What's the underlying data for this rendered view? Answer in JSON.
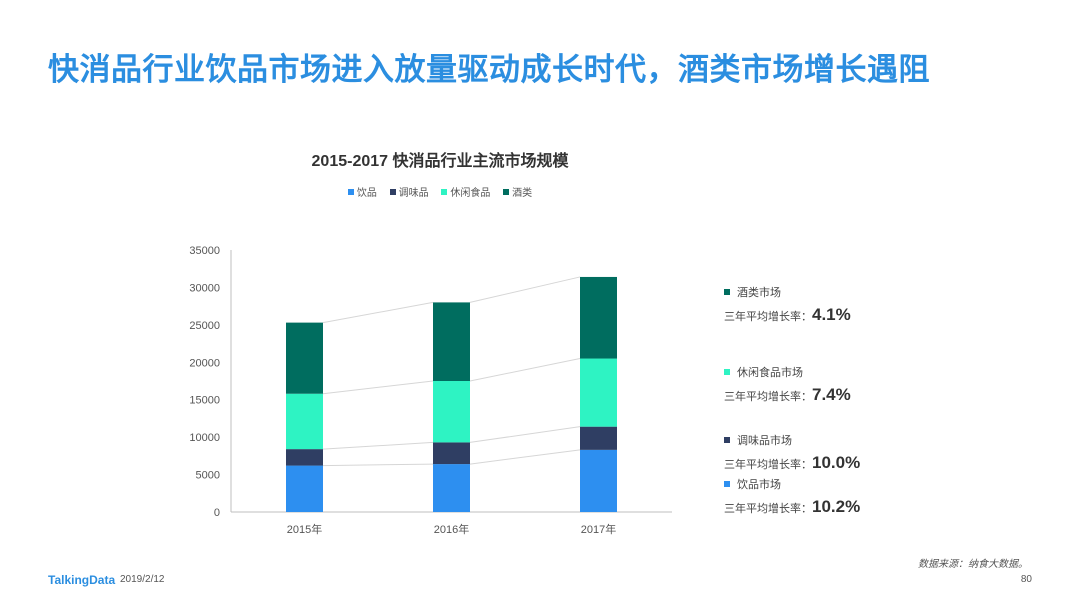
{
  "slide_title": "快消品行业饮品市场进入放量驱动成长时代，酒类市场增长遇阻",
  "colors": {
    "title": "#2b8ee0",
    "饮品": "#2d8ff0",
    "调味品": "#2f3e63",
    "休闲食品": "#2ef3c3",
    "酒类": "#006d5f"
  },
  "chart_data": {
    "type": "bar",
    "stacked": true,
    "title": "2015-2017  快消品行业主流市场规模",
    "categories": [
      "2015年",
      "2016年",
      "2017年"
    ],
    "series": [
      {
        "name": "饮品",
        "values": [
          6200,
          6400,
          8300
        ]
      },
      {
        "name": "调味品",
        "values": [
          2200,
          2900,
          3100
        ]
      },
      {
        "name": "休闲食品",
        "values": [
          7400,
          8200,
          9100
        ]
      },
      {
        "name": "酒类",
        "values": [
          9500,
          10500,
          10900
        ]
      }
    ],
    "ylim": [
      0,
      35000
    ],
    "yticks": [
      "0",
      "5000",
      "10000",
      "15000",
      "20000",
      "25000",
      "30000",
      "35000"
    ],
    "legend_position": "top-center",
    "grid": false,
    "connector_lines": true
  },
  "annotations": [
    {
      "name": "酒类市场",
      "rate_label": "三年平均增长率：",
      "rate": "4.1%",
      "color": "#006d5f"
    },
    {
      "name": "休闲食品市场",
      "rate_label": "三年平均增长率：",
      "rate": "7.4%",
      "color": "#2ef3c3"
    },
    {
      "name": "调味品市场",
      "rate_label": "三年平均增长率：",
      "rate": "10.0%",
      "color": "#2f3e63"
    },
    {
      "name": "饮品市场",
      "rate_label": "三年平均增长率：",
      "rate": "10.2%",
      "color": "#2d8ff0"
    }
  ],
  "source": "数据来源：纳食大数据。",
  "footer": {
    "logo": "TalkingData",
    "date": "2019/2/12",
    "page": "80"
  }
}
